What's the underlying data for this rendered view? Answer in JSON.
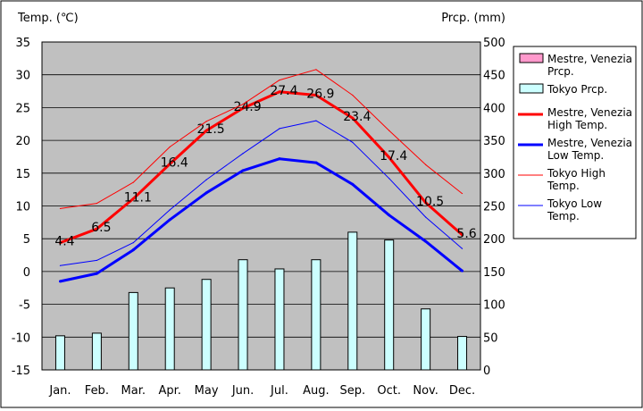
{
  "chart_data": {
    "type": "bar+line",
    "left_axis": {
      "label": "Temp. (℃)",
      "range": [
        -15,
        35
      ],
      "ticks": [
        35,
        30,
        25,
        20,
        15,
        10,
        5,
        0,
        -5,
        -10,
        -15
      ]
    },
    "right_axis": {
      "label": "Prcp. (mm)",
      "range": [
        0,
        500
      ],
      "ticks": [
        500,
        450,
        400,
        350,
        300,
        250,
        200,
        150,
        100,
        50,
        0
      ]
    },
    "categories": [
      "Jan.",
      "Feb.",
      "Mar.",
      "Apr.",
      "May",
      "Jun.",
      "Jul.",
      "Aug.",
      "Sep.",
      "Oct.",
      "Nov.",
      "Dec."
    ],
    "bars": [
      {
        "name": "Mestre, Venezia Prcp.",
        "color": "#ff99cc",
        "values": []
      },
      {
        "name": "Tokyo Prcp.",
        "color": "#ccffff",
        "values": [
          52,
          56,
          118,
          125,
          138,
          168,
          154,
          168,
          210,
          198,
          93,
          51
        ]
      }
    ],
    "lines": [
      {
        "name": "Mestre, Venezia High Temp.",
        "color": "#ff0000",
        "width": 3,
        "values": [
          4.4,
          6.5,
          11.1,
          16.4,
          21.5,
          24.9,
          27.4,
          26.9,
          23.4,
          17.4,
          10.5,
          5.6
        ],
        "labels": [
          "4.4",
          "6.5",
          "11.1",
          "16.4",
          "21.5",
          "24.9",
          "27.4",
          "26.9",
          "23.4",
          "17.4",
          "10.5",
          "5.6"
        ]
      },
      {
        "name": "Mestre, Venezia Low Temp.",
        "color": "#0000ff",
        "width": 3,
        "values": [
          -1.5,
          -0.3,
          3.3,
          7.9,
          12.0,
          15.4,
          17.2,
          16.6,
          13.3,
          8.6,
          4.6,
          0.1
        ]
      },
      {
        "name": "Tokyo High Temp.",
        "color": "#ff0000",
        "width": 1,
        "values": [
          9.6,
          10.4,
          13.6,
          19.0,
          22.9,
          25.5,
          29.2,
          30.8,
          26.9,
          21.5,
          16.3,
          11.9
        ]
      },
      {
        "name": "Tokyo Low Temp.",
        "color": "#0000ff",
        "width": 1,
        "values": [
          0.9,
          1.7,
          4.4,
          9.4,
          14.0,
          18.0,
          21.8,
          23.0,
          19.7,
          14.2,
          8.3,
          3.5
        ]
      }
    ],
    "legend": {
      "placement": "right",
      "items": [
        {
          "kind": "box",
          "color": "#ff99cc",
          "lines": [
            "Mestre, Venezia",
            "Prcp."
          ]
        },
        {
          "kind": "box",
          "color": "#ccffff",
          "lines": [
            "Tokyo Prcp."
          ]
        },
        {
          "kind": "line",
          "color": "#ff0000",
          "width": 3,
          "lines": [
            "Mestre, Venezia",
            "High Temp."
          ]
        },
        {
          "kind": "line",
          "color": "#0000ff",
          "width": 3,
          "lines": [
            "Mestre, Venezia",
            "Low Temp."
          ]
        },
        {
          "kind": "line",
          "color": "#ff0000",
          "width": 1,
          "lines": [
            "Tokyo High",
            "Temp."
          ]
        },
        {
          "kind": "line",
          "color": "#0000ff",
          "width": 1,
          "lines": [
            "Tokyo Low",
            "Temp."
          ]
        }
      ]
    },
    "plot_background": "#c0c0c0",
    "grid": "horizontal"
  }
}
